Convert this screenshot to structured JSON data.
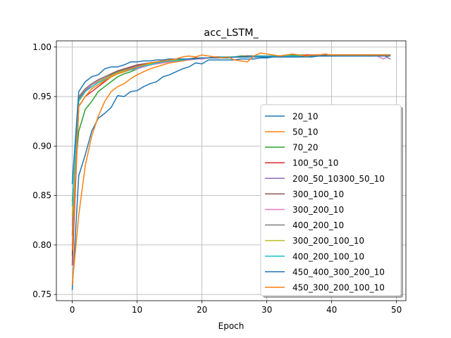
{
  "chart_data": {
    "type": "line",
    "title": "acc_LSTM_",
    "xlabel": "Epoch",
    "ylabel": "",
    "xlim": [
      -2.45,
      51.45
    ],
    "ylim": [
      0.7437,
      1.0063
    ],
    "xticks": [
      0,
      10,
      20,
      30,
      40,
      50
    ],
    "yticks": [
      0.75,
      0.8,
      0.85,
      0.9,
      0.95,
      1.0
    ],
    "ytick_labels": [
      "0.75",
      "0.80",
      "0.85",
      "0.90",
      "0.95",
      "1.00"
    ],
    "grid": true,
    "legend_position": "lower-right",
    "x": [
      0,
      1,
      2,
      3,
      4,
      5,
      6,
      7,
      8,
      9,
      10,
      11,
      12,
      13,
      14,
      15,
      16,
      17,
      18,
      19,
      20,
      21,
      22,
      23,
      24,
      25,
      26,
      27,
      28,
      29,
      30,
      31,
      32,
      33,
      34,
      35,
      36,
      37,
      38,
      39,
      40,
      41,
      42,
      43,
      44,
      45,
      46,
      47,
      48,
      49
    ],
    "series": [
      {
        "name": "20_10",
        "color": "#1f77b4",
        "values": [
          0.755,
          0.87,
          0.891,
          0.915,
          0.928,
          0.933,
          0.939,
          0.951,
          0.95,
          0.955,
          0.956,
          0.96,
          0.963,
          0.965,
          0.97,
          0.972,
          0.975,
          0.978,
          0.98,
          0.984,
          0.983,
          0.987,
          0.987,
          0.987,
          0.987,
          0.987,
          0.988,
          0.988,
          0.988,
          0.989,
          0.989,
          0.99,
          0.99,
          0.99,
          0.99,
          0.99,
          0.99,
          0.99,
          0.991,
          0.991,
          0.991,
          0.991,
          0.991,
          0.991,
          0.991,
          0.991,
          0.991,
          0.992,
          0.992,
          0.992
        ]
      },
      {
        "name": "50_10",
        "color": "#ff7f0e",
        "values": [
          0.76,
          0.83,
          0.88,
          0.91,
          0.93,
          0.945,
          0.955,
          0.96,
          0.963,
          0.968,
          0.972,
          0.975,
          0.978,
          0.98,
          0.982,
          0.984,
          0.985,
          0.986,
          0.987,
          0.988,
          0.988,
          0.989,
          0.989,
          0.989,
          0.99,
          0.99,
          0.99,
          0.99,
          0.991,
          0.991,
          0.991,
          0.991,
          0.991,
          0.991,
          0.991,
          0.991,
          0.992,
          0.992,
          0.992,
          0.992,
          0.992,
          0.992,
          0.992,
          0.992,
          0.992,
          0.992,
          0.992,
          0.992,
          0.992,
          0.992
        ]
      },
      {
        "name": "70_20",
        "color": "#2ca02c",
        "values": [
          0.845,
          0.915,
          0.937,
          0.945,
          0.955,
          0.96,
          0.965,
          0.97,
          0.973,
          0.975,
          0.978,
          0.98,
          0.982,
          0.984,
          0.985,
          0.986,
          0.987,
          0.988,
          0.988,
          0.989,
          0.989,
          0.989,
          0.99,
          0.99,
          0.99,
          0.99,
          0.991,
          0.991,
          0.991,
          0.991,
          0.991,
          0.991,
          0.991,
          0.992,
          0.992,
          0.992,
          0.992,
          0.992,
          0.992,
          0.992,
          0.992,
          0.992,
          0.992,
          0.992,
          0.992,
          0.992,
          0.992,
          0.992,
          0.992,
          0.992
        ]
      },
      {
        "name": "100_50_10",
        "color": "#d62728",
        "values": [
          0.78,
          0.94,
          0.95,
          0.955,
          0.96,
          0.965,
          0.97,
          0.973,
          0.976,
          0.978,
          0.98,
          0.982,
          0.984,
          0.985,
          0.986,
          0.987,
          0.987,
          0.988,
          0.988,
          0.989,
          0.989,
          0.989,
          0.99,
          0.99,
          0.99,
          0.99,
          0.99,
          0.991,
          0.991,
          0.991,
          0.991,
          0.991,
          0.991,
          0.991,
          0.991,
          0.991,
          0.992,
          0.992,
          0.992,
          0.992,
          0.992,
          0.992,
          0.992,
          0.992,
          0.992,
          0.992,
          0.992,
          0.992,
          0.992,
          0.992
        ]
      },
      {
        "name": "200_50_10300_50_10",
        "color": "#9467bd",
        "values": [
          0.8,
          0.945,
          0.955,
          0.962,
          0.966,
          0.969,
          0.972,
          0.975,
          0.977,
          0.979,
          0.981,
          0.983,
          0.984,
          0.985,
          0.986,
          0.987,
          0.987,
          0.988,
          0.988,
          0.989,
          0.989,
          0.989,
          0.99,
          0.99,
          0.99,
          0.99,
          0.99,
          0.991,
          0.991,
          0.991,
          0.991,
          0.991,
          0.991,
          0.991,
          0.991,
          0.991,
          0.991,
          0.992,
          0.992,
          0.992,
          0.992,
          0.992,
          0.992,
          0.992,
          0.992,
          0.992,
          0.992,
          0.992,
          0.992,
          0.992
        ]
      },
      {
        "name": "300_100_10",
        "color": "#8c564b",
        "values": [
          0.79,
          0.948,
          0.956,
          0.963,
          0.967,
          0.97,
          0.973,
          0.976,
          0.978,
          0.98,
          0.982,
          0.983,
          0.984,
          0.985,
          0.986,
          0.987,
          0.987,
          0.988,
          0.988,
          0.989,
          0.989,
          0.989,
          0.99,
          0.99,
          0.99,
          0.99,
          0.99,
          0.991,
          0.991,
          0.991,
          0.991,
          0.991,
          0.991,
          0.991,
          0.991,
          0.991,
          0.991,
          0.991,
          0.992,
          0.992,
          0.992,
          0.992,
          0.992,
          0.992,
          0.992,
          0.992,
          0.992,
          0.992,
          0.992,
          0.992
        ]
      },
      {
        "name": "300_200_10",
        "color": "#e377c2",
        "values": [
          0.82,
          0.95,
          0.957,
          0.962,
          0.966,
          0.969,
          0.972,
          0.974,
          0.976,
          0.977,
          0.978,
          0.98,
          0.982,
          0.983,
          0.984,
          0.985,
          0.986,
          0.987,
          0.987,
          0.988,
          0.988,
          0.989,
          0.989,
          0.989,
          0.99,
          0.99,
          0.99,
          0.99,
          0.99,
          0.991,
          0.991,
          0.991,
          0.991,
          0.991,
          0.991,
          0.991,
          0.991,
          0.991,
          0.991,
          0.991,
          0.991,
          0.991,
          0.991,
          0.991,
          0.991,
          0.991,
          0.991,
          0.991,
          0.988,
          0.992
        ]
      },
      {
        "name": "400_200_10",
        "color": "#7f7f7f",
        "values": [
          0.81,
          0.95,
          0.958,
          0.963,
          0.967,
          0.97,
          0.972,
          0.975,
          0.977,
          0.978,
          0.98,
          0.981,
          0.983,
          0.984,
          0.985,
          0.986,
          0.987,
          0.987,
          0.988,
          0.988,
          0.989,
          0.989,
          0.989,
          0.99,
          0.99,
          0.99,
          0.99,
          0.99,
          0.991,
          0.991,
          0.991,
          0.991,
          0.991,
          0.991,
          0.991,
          0.991,
          0.991,
          0.991,
          0.991,
          0.991,
          0.992,
          0.992,
          0.992,
          0.992,
          0.992,
          0.992,
          0.992,
          0.992,
          0.992,
          0.988
        ]
      },
      {
        "name": "300_200_100_10",
        "color": "#bcbd22",
        "values": [
          0.83,
          0.945,
          0.955,
          0.96,
          0.965,
          0.968,
          0.971,
          0.974,
          0.976,
          0.978,
          0.98,
          0.982,
          0.983,
          0.984,
          0.985,
          0.986,
          0.987,
          0.987,
          0.988,
          0.988,
          0.989,
          0.989,
          0.989,
          0.99,
          0.99,
          0.99,
          0.99,
          0.99,
          0.991,
          0.991,
          0.991,
          0.991,
          0.991,
          0.991,
          0.991,
          0.991,
          0.991,
          0.991,
          0.991,
          0.991,
          0.992,
          0.992,
          0.992,
          0.992,
          0.992,
          0.992,
          0.992,
          0.992,
          0.992,
          0.992
        ]
      },
      {
        "name": "400_200_100_10",
        "color": "#17becf",
        "values": [
          0.84,
          0.946,
          0.955,
          0.96,
          0.964,
          0.967,
          0.97,
          0.973,
          0.975,
          0.977,
          0.979,
          0.981,
          0.982,
          0.984,
          0.985,
          0.986,
          0.986,
          0.987,
          0.988,
          0.988,
          0.989,
          0.989,
          0.989,
          0.99,
          0.99,
          0.99,
          0.99,
          0.99,
          0.991,
          0.991,
          0.991,
          0.991,
          0.991,
          0.991,
          0.991,
          0.991,
          0.991,
          0.991,
          0.991,
          0.991,
          0.991,
          0.992,
          0.992,
          0.992,
          0.992,
          0.992,
          0.992,
          0.992,
          0.992,
          0.992
        ]
      },
      {
        "name": "450_400_300_200_10",
        "color": "#1f77b4",
        "values": [
          0.862,
          0.955,
          0.965,
          0.97,
          0.972,
          0.978,
          0.98,
          0.98,
          0.982,
          0.985,
          0.985,
          0.986,
          0.986,
          0.987,
          0.987,
          0.988,
          0.988,
          0.988,
          0.988,
          0.988,
          0.989,
          0.989,
          0.989,
          0.989,
          0.989,
          0.99,
          0.99,
          0.99,
          0.99,
          0.99,
          0.99,
          0.99,
          0.99,
          0.99,
          0.99,
          0.99,
          0.991,
          0.991,
          0.991,
          0.991,
          0.991,
          0.991,
          0.991,
          0.991,
          0.991,
          0.991,
          0.991,
          0.991,
          0.991,
          0.991
        ]
      },
      {
        "name": "450_300_200_100_10",
        "color": "#ff7f0e",
        "values": [
          0.795,
          0.94,
          0.95,
          0.958,
          0.962,
          0.966,
          0.97,
          0.973,
          0.975,
          0.978,
          0.98,
          0.982,
          0.984,
          0.985,
          0.986,
          0.987,
          0.988,
          0.99,
          0.991,
          0.99,
          0.992,
          0.991,
          0.99,
          0.989,
          0.99,
          0.987,
          0.986,
          0.985,
          0.991,
          0.994,
          0.993,
          0.992,
          0.991,
          0.992,
          0.993,
          0.992,
          0.991,
          0.992,
          0.992,
          0.993,
          0.992,
          0.992,
          0.992,
          0.992,
          0.992,
          0.992,
          0.992,
          0.992,
          0.992,
          0.992
        ]
      }
    ]
  }
}
